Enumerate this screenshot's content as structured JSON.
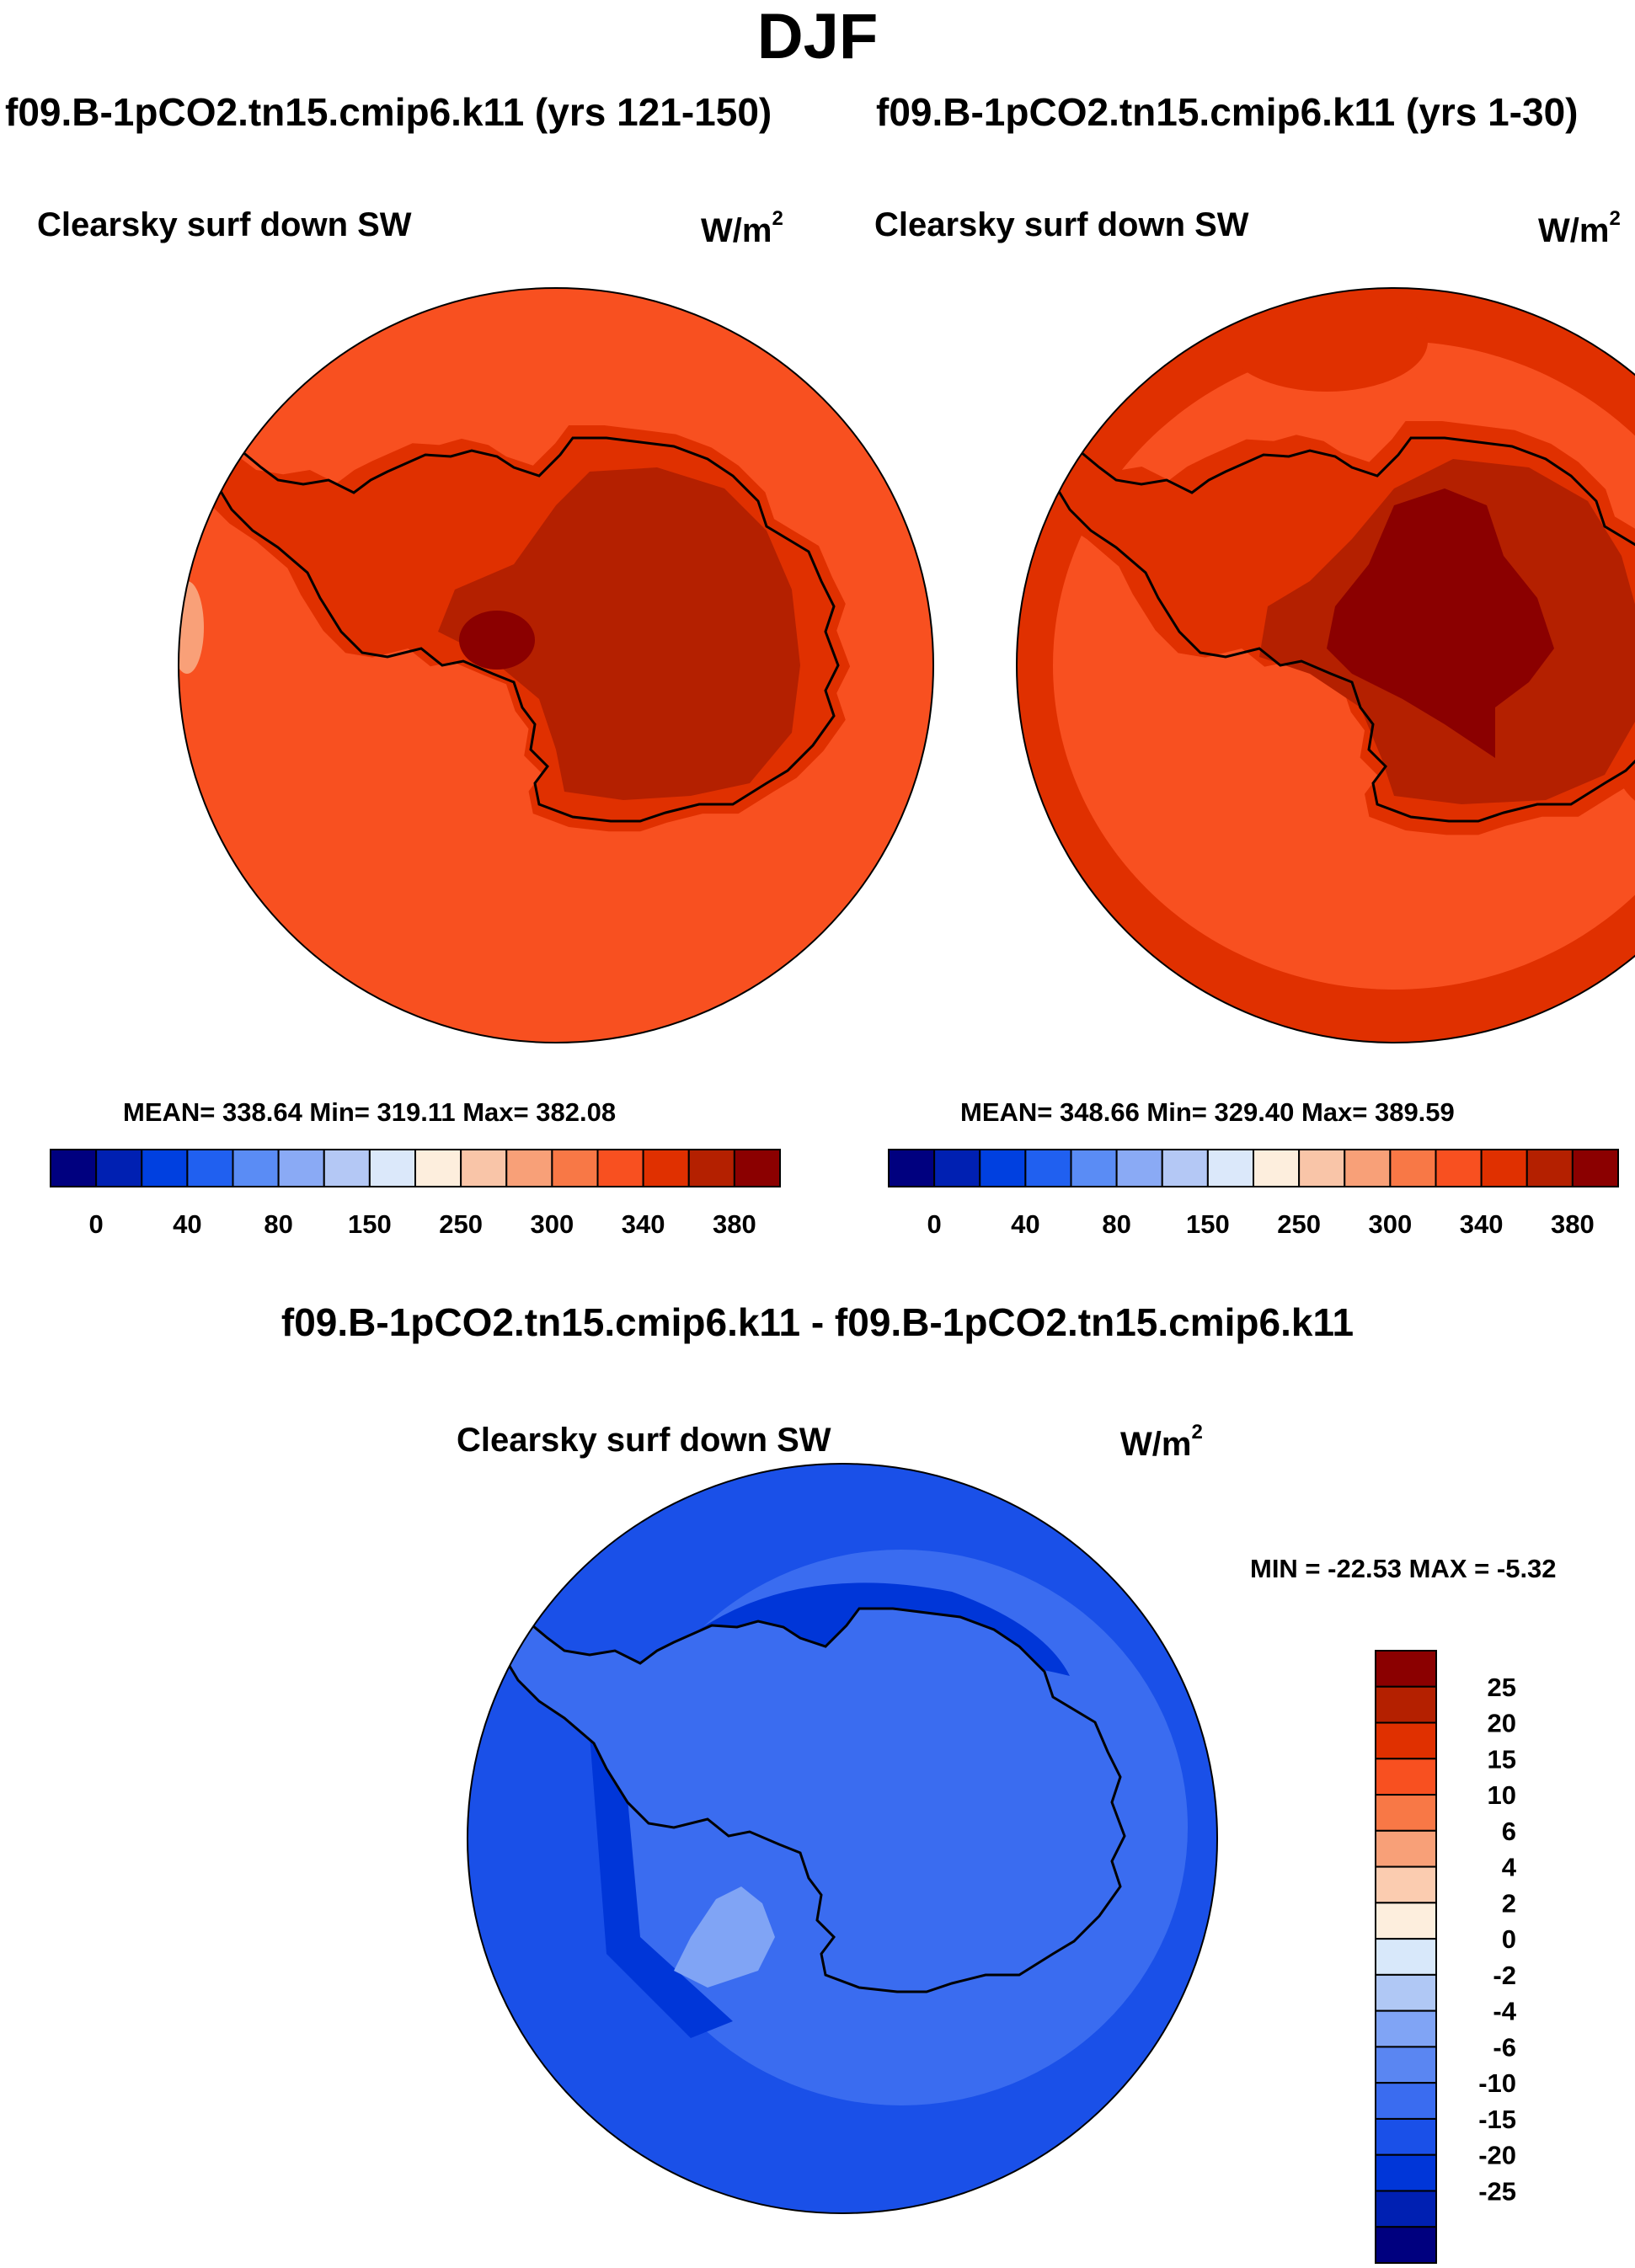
{
  "season": "DJF",
  "colors": {
    "warm_scale": [
      "#00007f",
      "#0020b2",
      "#0040e0",
      "#2060f0",
      "#5a8cf5",
      "#8aaaf5",
      "#b4c8f5",
      "#dbe8fa",
      "#fdeedd",
      "#f9c5a8",
      "#f8a078",
      "#f87846",
      "#f85020",
      "#e03000",
      "#b42000",
      "#8b0000"
    ],
    "diff_scale": [
      "#00007f",
      "#0020b2",
      "#0036d8",
      "#1a50e8",
      "#3a6cf0",
      "#5a86f2",
      "#80a4f5",
      "#b0c8f5",
      "#d8e8fa",
      "#fdeedd",
      "#fbccb0",
      "#f8a078",
      "#f87846",
      "#f85020",
      "#e03000",
      "#b42000",
      "#8b0000"
    ]
  },
  "panels": [
    {
      "case_title": "f09.B-1pCO2.tn15.cmip6.k11 (yrs 121-150)",
      "variable": "Clearsky surf down SW",
      "units_base": "W/m",
      "units_exp": "2",
      "stats": "MEAN= 338.64  Min= 319.11  Max= 382.08",
      "colorbar_labels": [
        "0",
        "40",
        "80",
        "150",
        "250",
        "300",
        "340",
        "380"
      ]
    },
    {
      "case_title": "f09.B-1pCO2.tn15.cmip6.k11 (yrs 1-30)",
      "variable": "Clearsky surf down SW",
      "units_base": "W/m",
      "units_exp": "2",
      "stats": "MEAN= 348.66  Min= 329.40  Max= 389.59",
      "colorbar_labels": [
        "0",
        "40",
        "80",
        "150",
        "250",
        "300",
        "340",
        "380"
      ]
    }
  ],
  "difference": {
    "title": "f09.B-1pCO2.tn15.cmip6.k11 - f09.B-1pCO2.tn15.cmip6.k11",
    "variable": "Clearsky surf down SW",
    "units_base": "W/m",
    "units_exp": "2",
    "stats": "MIN = -22.53 MAX =  -5.32",
    "colorbar_labels": [
      "25",
      "20",
      "15",
      "10",
      "6",
      "4",
      "2",
      "0",
      "-2",
      "-4",
      "-6",
      "-10",
      "-15",
      "-20",
      "-25"
    ]
  },
  "chart_data": [
    {
      "type": "heatmap",
      "title": "f09.B-1pCO2.tn15.cmip6.k11 (yrs 121-150)",
      "variable": "Clearsky surf down SW",
      "units": "W/m^2",
      "mean": 338.64,
      "min": 319.11,
      "max": 382.08,
      "levels": [
        0,
        40,
        80,
        150,
        250,
        300,
        340,
        380
      ],
      "projection": "south polar stereographic"
    },
    {
      "type": "heatmap",
      "title": "f09.B-1pCO2.tn15.cmip6.k11 (yrs 1-30)",
      "variable": "Clearsky surf down SW",
      "units": "W/m^2",
      "mean": 348.66,
      "min": 329.4,
      "max": 389.59,
      "levels": [
        0,
        40,
        80,
        150,
        250,
        300,
        340,
        380
      ],
      "projection": "south polar stereographic"
    },
    {
      "type": "heatmap",
      "title": "f09.B-1pCO2.tn15.cmip6.k11 - f09.B-1pCO2.tn15.cmip6.k11",
      "variable": "Clearsky surf down SW",
      "units": "W/m^2",
      "min": -22.53,
      "max": -5.32,
      "levels": [
        25,
        20,
        15,
        10,
        6,
        4,
        2,
        0,
        -2,
        -4,
        -6,
        -10,
        -15,
        -20,
        -25
      ],
      "projection": "south polar stereographic"
    }
  ]
}
